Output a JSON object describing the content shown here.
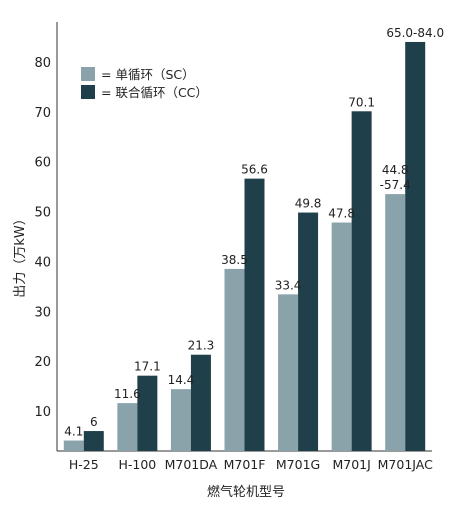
{
  "chart_data": {
    "type": "bar",
    "xlabel": "燃气轮机型号",
    "ylabel": "出力（万kW）",
    "ylim": [
      2,
      88
    ],
    "yticks": [
      10,
      20,
      30,
      40,
      50,
      60,
      70,
      80
    ],
    "categories": [
      "H-25",
      "H-100",
      "M701DA",
      "M701F",
      "M701G",
      "M701J",
      "M701JAC"
    ],
    "series": [
      {
        "name": "= 单循环（SC）",
        "color": "#8aa3ab",
        "values": [
          4.1,
          11.6,
          14.4,
          38.5,
          33.4,
          47.8,
          53.5
        ],
        "labels": [
          "4.1",
          "11.6",
          "14.4",
          "38.5",
          "33.4",
          "47.8",
          "44.8\n-57.4"
        ]
      },
      {
        "name": "= 联合循环（CC）",
        "color": "#1f3f4a",
        "values": [
          6,
          17.1,
          21.3,
          56.6,
          49.8,
          70.1,
          84.0
        ],
        "labels": [
          "6",
          "17.1",
          "21.3",
          "56.6",
          "49.8",
          "70.1",
          "65.0-84.0"
        ]
      }
    ],
    "legend_position": "top-left",
    "grid": false
  }
}
